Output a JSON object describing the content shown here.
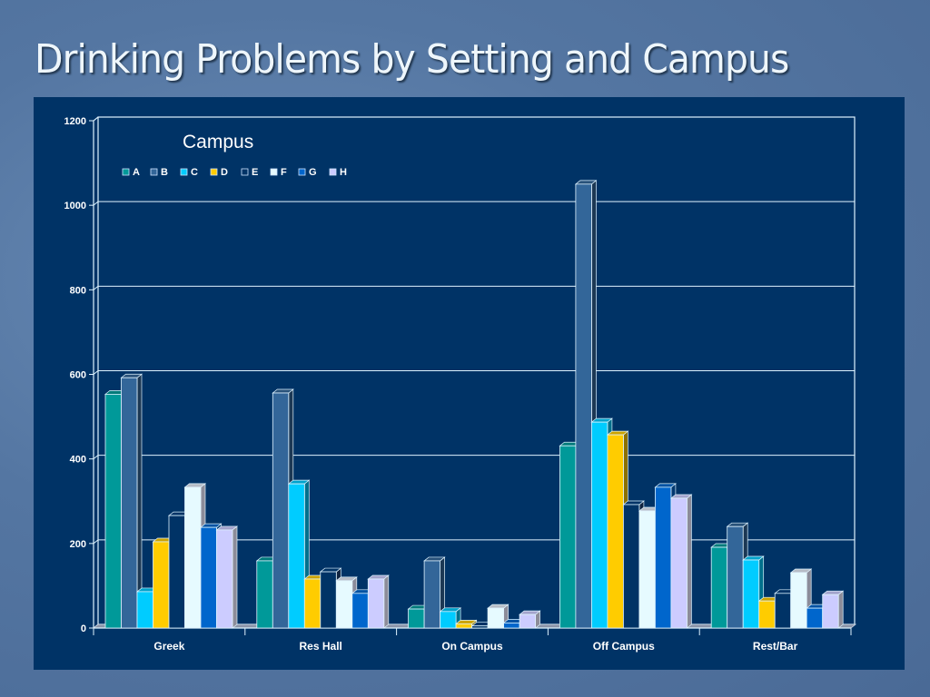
{
  "slide": {
    "title": "Drinking Problems by Setting and Campus"
  },
  "chart_data": {
    "type": "bar",
    "style": "3d-clustered-column",
    "title": "",
    "legend_title": "Campus",
    "legend_position": "top-left",
    "xlabel": "",
    "ylabel": "",
    "ylim": [
      0,
      1200
    ],
    "yticks": [
      0,
      200,
      400,
      600,
      800,
      1000,
      1200
    ],
    "grid": true,
    "categories": [
      "Greek",
      "Res Hall",
      "On Campus",
      "Off Campus",
      "Rest/Bar"
    ],
    "series": [
      {
        "name": "A",
        "color": "#009999",
        "values": [
          553,
          159,
          45,
          431,
          191
        ]
      },
      {
        "name": "B",
        "color": "#336699",
        "values": [
          592,
          556,
          159,
          1050,
          240
        ]
      },
      {
        "name": "C",
        "color": "#00ccff",
        "values": [
          86,
          341,
          39,
          487,
          161
        ]
      },
      {
        "name": "D",
        "color": "#ffcc00",
        "values": [
          204,
          116,
          10,
          457,
          64
        ]
      },
      {
        "name": "E",
        "color": "#003366",
        "values": [
          266,
          133,
          5,
          292,
          82
        ]
      },
      {
        "name": "F",
        "color": "#e6faff",
        "values": [
          333,
          112,
          47,
          277,
          131
        ]
      },
      {
        "name": "G",
        "color": "#0066cc",
        "values": [
          238,
          82,
          12,
          333,
          47
        ]
      },
      {
        "name": "H",
        "color": "#ccccff",
        "values": [
          232,
          116,
          32,
          307,
          79
        ]
      }
    ]
  }
}
